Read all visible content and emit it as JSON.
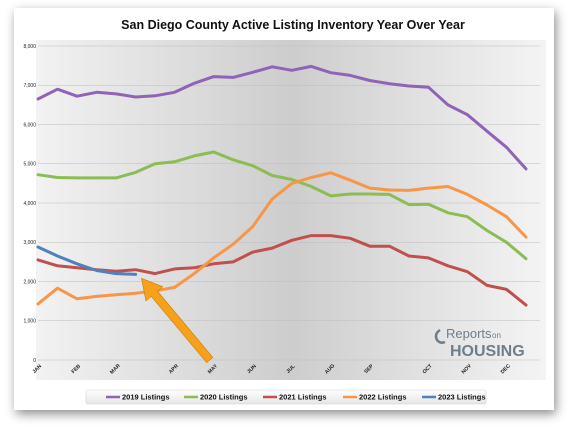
{
  "chart_data": {
    "type": "line",
    "title": "San Diego County Active Listing Inventory Year Over Year",
    "ylim": [
      0,
      8000
    ],
    "yticks": [
      "0",
      "1,000",
      "2,000",
      "3,000",
      "4,000",
      "5,000",
      "6,000",
      "7,000",
      "8,000"
    ],
    "month_labels": [
      {
        "label": "JAN",
        "x": 1
      },
      {
        "label": "FEB",
        "x": 3
      },
      {
        "label": "MAR",
        "x": 5
      },
      {
        "label": "APR",
        "x": 8
      },
      {
        "label": "MAY",
        "x": 10
      },
      {
        "label": "JUN",
        "x": 12
      },
      {
        "label": "JUL",
        "x": 14
      },
      {
        "label": "AUG",
        "x": 16
      },
      {
        "label": "SEP",
        "x": 18
      },
      {
        "label": "OCT",
        "x": 21
      },
      {
        "label": "NOV",
        "x": 23
      },
      {
        "label": "DEC",
        "x": 25
      }
    ],
    "x_range": [
      1,
      26
    ],
    "grid": true,
    "legend_position": "bottom",
    "series": [
      {
        "name": "2019 Listings",
        "color": "#8e63b8",
        "values": [
          6650,
          6900,
          6720,
          6820,
          6780,
          6700,
          6730,
          6820,
          7050,
          7220,
          7200,
          7330,
          7470,
          7380,
          7480,
          7320,
          7250,
          7120,
          7040,
          6980,
          6950,
          6500,
          6250,
          5830,
          5420,
          4870
        ]
      },
      {
        "name": "2020 Listings",
        "color": "#8cbd54",
        "values": [
          4720,
          4650,
          4640,
          4640,
          4640,
          4780,
          5000,
          5050,
          5200,
          5300,
          5100,
          4950,
          4700,
          4600,
          4420,
          4180,
          4230,
          4230,
          4220,
          3960,
          3970,
          3750,
          3650,
          3300,
          3000,
          2580
        ]
      },
      {
        "name": "2021 Listings",
        "color": "#c0504d",
        "values": [
          2550,
          2400,
          2350,
          2300,
          2260,
          2300,
          2200,
          2320,
          2350,
          2450,
          2500,
          2750,
          2850,
          3050,
          3170,
          3170,
          3100,
          2900,
          2900,
          2650,
          2600,
          2400,
          2250,
          1900,
          1800,
          1400
        ]
      },
      {
        "name": "2022 Listings",
        "color": "#f79646",
        "values": [
          1430,
          1830,
          1560,
          1620,
          1660,
          1700,
          1760,
          1850,
          2200,
          2600,
          2950,
          3400,
          4100,
          4500,
          4650,
          4770,
          4580,
          4380,
          4330,
          4320,
          4380,
          4420,
          4220,
          3950,
          3650,
          3130
        ]
      },
      {
        "name": "2023 Listings",
        "color": "#4f81bd",
        "values": [
          2880,
          2650,
          2450,
          2280,
          2200,
          2180
        ]
      }
    ],
    "annotation": {
      "type": "arrow",
      "color": "#f7a11a",
      "points_to_x": 6.3,
      "points_to_y": 2080
    }
  },
  "logo": {
    "line1": "Reports",
    "line1b": "on",
    "line2": "HOUSING"
  }
}
